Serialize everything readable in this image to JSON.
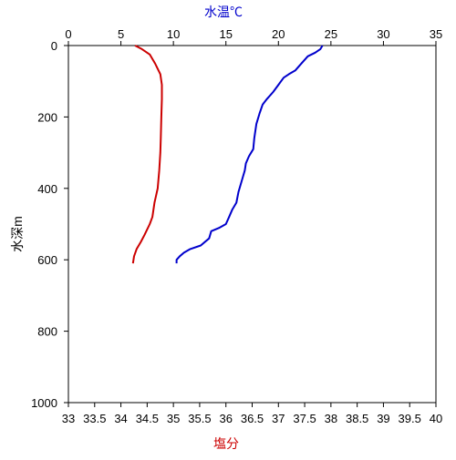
{
  "chart_data": {
    "type": "line",
    "title": "",
    "top_axis": {
      "label": "水温℃",
      "label_color": "#0000cc",
      "range": [
        0,
        35
      ],
      "ticks": [
        0,
        5,
        10,
        15,
        20,
        25,
        30,
        35
      ],
      "tick_labels": [
        "0",
        "5",
        "10",
        "15",
        "20",
        "25",
        "30",
        "35"
      ]
    },
    "bottom_axis": {
      "label": "塩分",
      "label_color": "#cc0000",
      "range": [
        33,
        40
      ],
      "ticks": [
        33,
        33.5,
        34,
        34.5,
        35,
        35.5,
        36,
        36.5,
        37,
        37.5,
        38,
        38.5,
        39,
        39.5,
        40
      ],
      "tick_labels": [
        "33",
        "33.5",
        "34",
        "34.5",
        "35",
        "35.5",
        "36",
        "36.5",
        "37",
        "37.5",
        "38",
        "38.5",
        "39",
        "39.5",
        "40"
      ]
    },
    "y_axis": {
      "label": "水深m",
      "range": [
        0,
        1000
      ],
      "inverted": true,
      "ticks": [
        0,
        200,
        400,
        600,
        800,
        1000
      ],
      "tick_labels": [
        "0",
        "200",
        "400",
        "600",
        "800",
        "1000"
      ]
    },
    "grid": false,
    "series": [
      {
        "axis": "top",
        "color": "#0000cc",
        "points": [
          [
            24.2,
            0
          ],
          [
            24.0,
            10
          ],
          [
            23.5,
            20
          ],
          [
            22.8,
            30
          ],
          [
            22.2,
            50
          ],
          [
            21.6,
            70
          ],
          [
            21.0,
            80
          ],
          [
            20.5,
            90
          ],
          [
            20.0,
            110
          ],
          [
            19.5,
            130
          ],
          [
            18.9,
            150
          ],
          [
            18.5,
            165
          ],
          [
            18.2,
            190
          ],
          [
            17.9,
            220
          ],
          [
            17.7,
            260
          ],
          [
            17.6,
            290
          ],
          [
            17.2,
            310
          ],
          [
            16.9,
            330
          ],
          [
            16.8,
            350
          ],
          [
            16.6,
            370
          ],
          [
            16.4,
            390
          ],
          [
            16.2,
            410
          ],
          [
            16.0,
            440
          ],
          [
            15.6,
            460
          ],
          [
            15.3,
            480
          ],
          [
            15.0,
            500
          ],
          [
            14.4,
            510
          ],
          [
            13.6,
            520
          ],
          [
            13.4,
            540
          ],
          [
            12.6,
            560
          ],
          [
            11.6,
            570
          ],
          [
            11.0,
            580
          ],
          [
            10.6,
            590
          ],
          [
            10.3,
            600
          ],
          [
            10.3,
            610
          ]
        ]
      },
      {
        "axis": "bottom",
        "color": "#cc0000",
        "points": [
          [
            34.27,
            0
          ],
          [
            34.4,
            10
          ],
          [
            34.55,
            25
          ],
          [
            34.65,
            50
          ],
          [
            34.75,
            80
          ],
          [
            34.78,
            110
          ],
          [
            34.78,
            150
          ],
          [
            34.77,
            200
          ],
          [
            34.76,
            260
          ],
          [
            34.75,
            300
          ],
          [
            34.73,
            350
          ],
          [
            34.7,
            400
          ],
          [
            34.64,
            440
          ],
          [
            34.6,
            480
          ],
          [
            34.55,
            500
          ],
          [
            34.45,
            530
          ],
          [
            34.38,
            550
          ],
          [
            34.3,
            570
          ],
          [
            34.25,
            590
          ],
          [
            34.23,
            610
          ]
        ]
      }
    ]
  }
}
